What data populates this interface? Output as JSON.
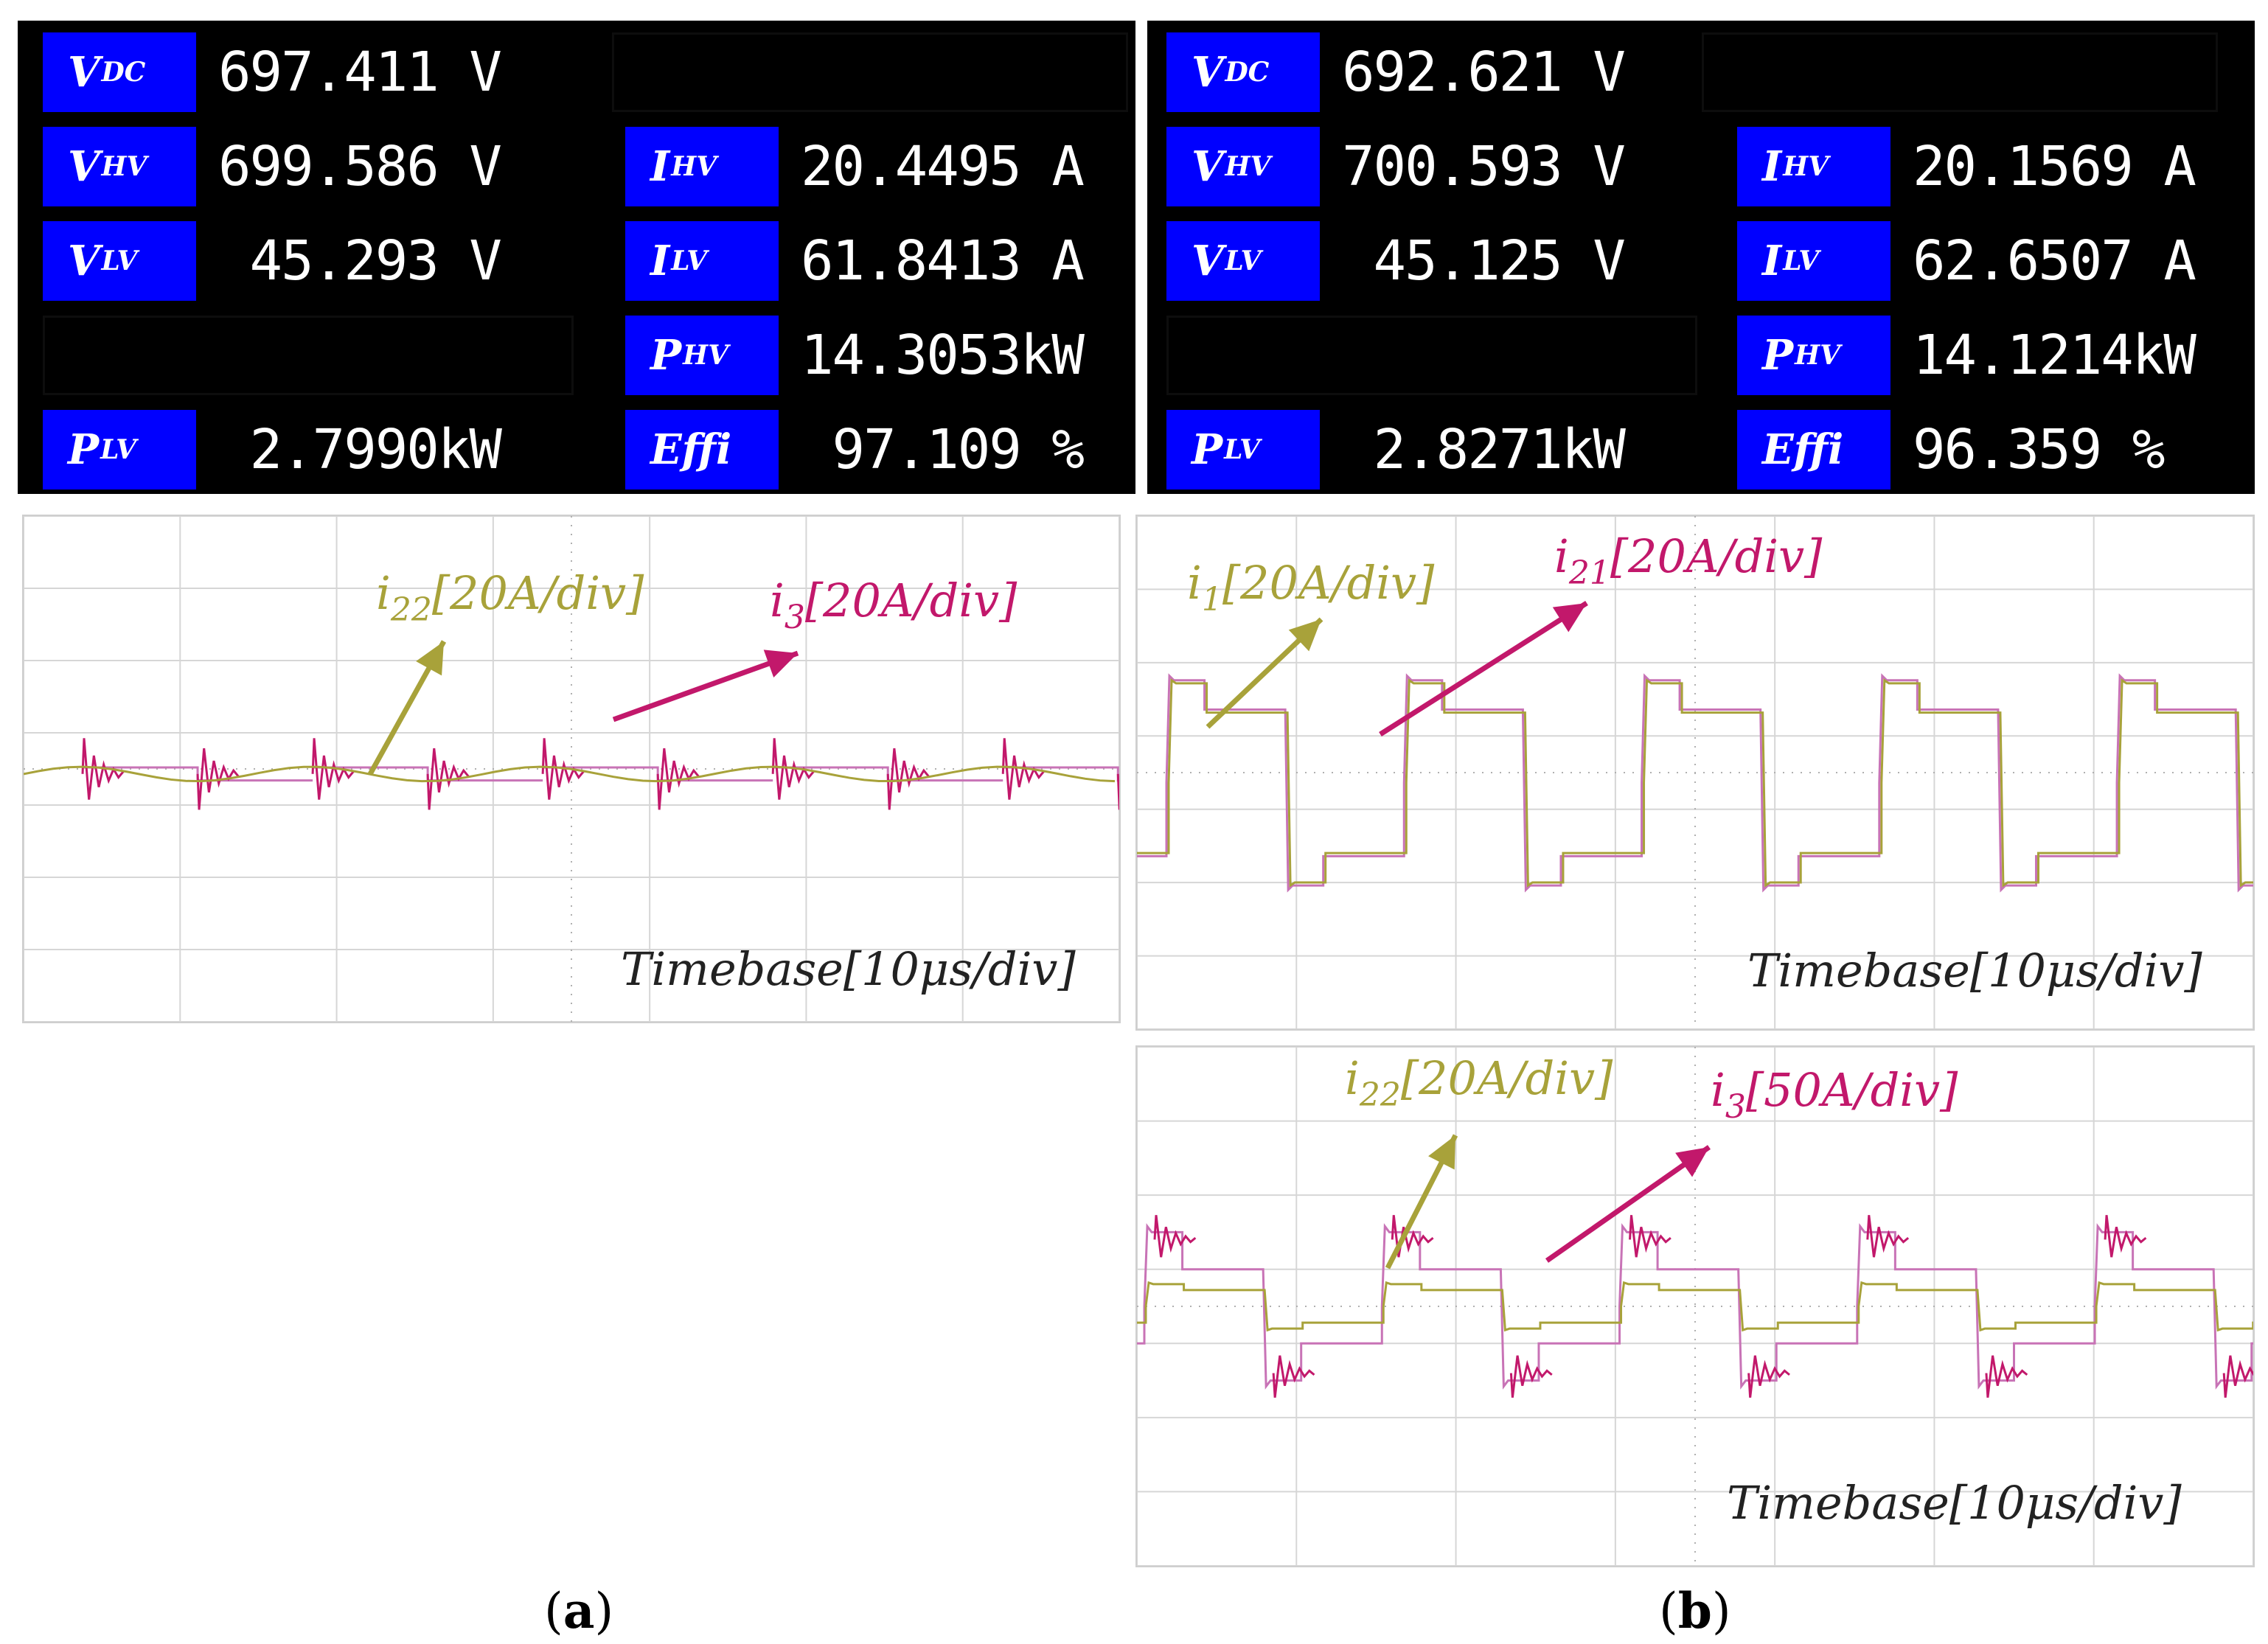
{
  "meter_a": {
    "vdc": {
      "sym": "V",
      "sub": "DC",
      "value": "697.411 V"
    },
    "vhv": {
      "sym": "V",
      "sub": "HV",
      "value": "699.586 V"
    },
    "vlv": {
      "sym": "V",
      "sub": "LV",
      "value": " 45.293 V"
    },
    "plv": {
      "sym": "P",
      "sub": "LV",
      "value": " 2.7990kW"
    },
    "ihv": {
      "sym": "I",
      "sub": "HV",
      "value": "20.4495 A"
    },
    "ilv": {
      "sym": "I",
      "sub": "LV",
      "value": "61.8413 A"
    },
    "phv": {
      "sym": "P",
      "sub": "HV",
      "value": "14.3053kW"
    },
    "effi": {
      "sym": "Effi",
      "value": " 97.109 %"
    }
  },
  "meter_b": {
    "vdc": {
      "sym": "V",
      "sub": "DC",
      "value": "692.621 V"
    },
    "vhv": {
      "sym": "V",
      "sub": "HV",
      "value": "700.593 V"
    },
    "vlv": {
      "sym": "V",
      "sub": "LV",
      "value": " 45.125 V"
    },
    "plv": {
      "sym": "P",
      "sub": "LV",
      "value": " 2.8271kW"
    },
    "ihv": {
      "sym": "I",
      "sub": "HV",
      "value": "20.1569 A"
    },
    "ilv": {
      "sym": "I",
      "sub": "LV",
      "value": "62.6507 A"
    },
    "phv": {
      "sym": "P",
      "sub": "HV",
      "value": "14.1214kW"
    },
    "effi": {
      "sym": "Effi",
      "value": "96.359 %"
    }
  },
  "colors": {
    "olive": "#a8a23a",
    "magenta": "#c2186b",
    "trace_pink": "#c873b6"
  },
  "chart_data": [
    {
      "type": "line",
      "panel": "a",
      "timebase": "Timebase[10μs/div]",
      "series": [
        {
          "name": "i22",
          "sym": "i",
          "sub": "22",
          "scale": "[20A/div]",
          "amplitude_div": 0.1
        },
        {
          "name": "i3",
          "sym": "i",
          "sub": "3",
          "scale": "[20A/div]",
          "amplitude_div": 0.6
        }
      ]
    },
    {
      "type": "line",
      "panel": "b-top",
      "timebase": "Timebase[10μs/div]",
      "series": [
        {
          "name": "i1",
          "sym": "i",
          "sub": "1",
          "scale": "[20A/div]",
          "amplitude_div": 1.4
        },
        {
          "name": "i21",
          "sym": "i",
          "sub": "21",
          "scale": "[20A/div]",
          "amplitude_div": 1.4
        }
      ]
    },
    {
      "type": "line",
      "panel": "b-bottom",
      "timebase": "Timebase[10μs/div]",
      "series": [
        {
          "name": "i22",
          "sym": "i",
          "sub": "22",
          "scale": "[20A/div]",
          "amplitude_div": 0.3
        },
        {
          "name": "i3",
          "sym": "i",
          "sub": "3",
          "scale": "[50A/div]",
          "amplitude_div": 1.0
        }
      ]
    }
  ],
  "captions": {
    "a": "a",
    "b": "b"
  }
}
